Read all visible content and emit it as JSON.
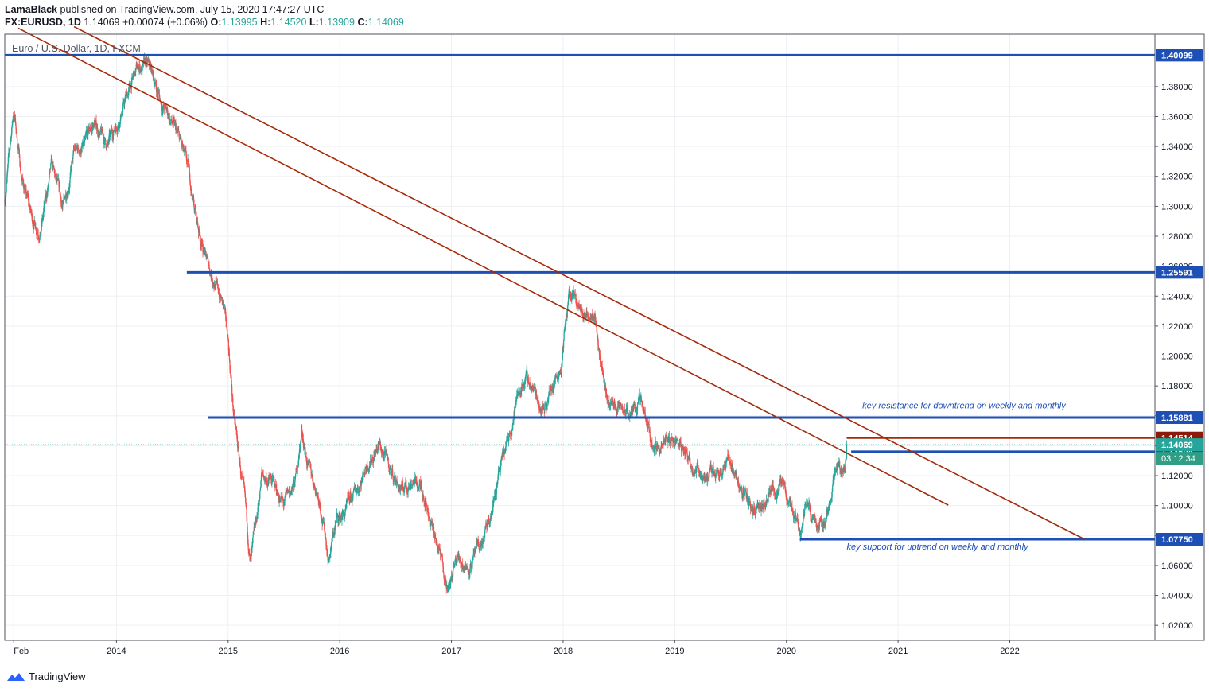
{
  "header": {
    "publisher": "LamaBlack",
    "published_text": "published on TradingView.com, July 15, 2020 17:47:27 UTC",
    "symbol": "FX:EURUSD, 1D",
    "last": "1.14069",
    "change": "+0.00074 (+0.06%)",
    "o_label": "O:",
    "o_value": "1.13995",
    "h_label": "H:",
    "h_value": "1.14520",
    "l_label": "L:",
    "l_value": "1.13909",
    "c_label": "C:",
    "c_value": "1.14069"
  },
  "footer": {
    "brand": "TradingView"
  },
  "colors": {
    "up": "#26a69a",
    "down": "#ef5350",
    "hline": "#1e4fb5",
    "trendline": "#a52a0a",
    "grid": "#edf0f3",
    "axis_text": "#131722"
  },
  "chart_data": {
    "type": "candlestick",
    "title": "Euro / U.S. Dollar, 1D, FXCM",
    "ylim": [
      1.01,
      1.415
    ],
    "y_ticks": [
      "1.02000",
      "1.04000",
      "1.06000",
      "1.08000",
      "1.10000",
      "1.12000",
      "1.14000",
      "1.16000",
      "1.18000",
      "1.20000",
      "1.22000",
      "1.24000",
      "1.26000",
      "1.28000",
      "1.30000",
      "1.32000",
      "1.34000",
      "1.36000",
      "1.38000"
    ],
    "x_ticks": [
      {
        "label": "Feb",
        "t": 2013.08
      },
      {
        "label": "2014",
        "t": 2014.0
      },
      {
        "label": "2015",
        "t": 2015.0
      },
      {
        "label": "2016",
        "t": 2016.0
      },
      {
        "label": "2017",
        "t": 2017.0
      },
      {
        "label": "2018",
        "t": 2018.0
      },
      {
        "label": "2019",
        "t": 2019.0
      },
      {
        "label": "2020",
        "t": 2020.0
      },
      {
        "label": "2021",
        "t": 2021.0
      },
      {
        "label": "2022",
        "t": 2022.0
      }
    ],
    "price_anchors": [
      [
        2013.0,
        1.305
      ],
      [
        2013.08,
        1.365
      ],
      [
        2013.15,
        1.32
      ],
      [
        2013.25,
        1.29
      ],
      [
        2013.32,
        1.285
      ],
      [
        2013.42,
        1.325
      ],
      [
        2013.52,
        1.298
      ],
      [
        2013.62,
        1.335
      ],
      [
        2013.72,
        1.34
      ],
      [
        2013.8,
        1.355
      ],
      [
        2013.92,
        1.34
      ],
      [
        2014.05,
        1.365
      ],
      [
        2014.15,
        1.385
      ],
      [
        2014.2,
        1.393
      ],
      [
        2014.3,
        1.392
      ],
      [
        2014.4,
        1.37
      ],
      [
        2014.5,
        1.355
      ],
      [
        2014.58,
        1.34
      ],
      [
        2014.65,
        1.32
      ],
      [
        2014.72,
        1.29
      ],
      [
        2014.8,
        1.265
      ],
      [
        2014.88,
        1.25
      ],
      [
        2014.95,
        1.235
      ],
      [
        2015.0,
        1.21
      ],
      [
        2015.05,
        1.16
      ],
      [
        2015.1,
        1.13
      ],
      [
        2015.15,
        1.1
      ],
      [
        2015.2,
        1.06
      ],
      [
        2015.25,
        1.085
      ],
      [
        2015.3,
        1.12
      ],
      [
        2015.4,
        1.115
      ],
      [
        2015.5,
        1.1
      ],
      [
        2015.6,
        1.115
      ],
      [
        2015.66,
        1.15
      ],
      [
        2015.72,
        1.125
      ],
      [
        2015.82,
        1.105
      ],
      [
        2015.9,
        1.065
      ],
      [
        2015.97,
        1.09
      ],
      [
        2016.05,
        1.095
      ],
      [
        2016.15,
        1.11
      ],
      [
        2016.25,
        1.13
      ],
      [
        2016.35,
        1.14
      ],
      [
        2016.45,
        1.125
      ],
      [
        2016.55,
        1.11
      ],
      [
        2016.65,
        1.118
      ],
      [
        2016.75,
        1.11
      ],
      [
        2016.85,
        1.08
      ],
      [
        2016.92,
        1.06
      ],
      [
        2016.98,
        1.045
      ],
      [
        2017.05,
        1.065
      ],
      [
        2017.15,
        1.06
      ],
      [
        2017.25,
        1.07
      ],
      [
        2017.35,
        1.09
      ],
      [
        2017.42,
        1.12
      ],
      [
        2017.5,
        1.14
      ],
      [
        2017.58,
        1.17
      ],
      [
        2017.65,
        1.185
      ],
      [
        2017.72,
        1.18
      ],
      [
        2017.82,
        1.165
      ],
      [
        2017.9,
        1.18
      ],
      [
        2017.98,
        1.195
      ],
      [
        2018.05,
        1.24
      ],
      [
        2018.12,
        1.235
      ],
      [
        2018.2,
        1.225
      ],
      [
        2018.28,
        1.235
      ],
      [
        2018.33,
        1.2
      ],
      [
        2018.4,
        1.17
      ],
      [
        2018.5,
        1.165
      ],
      [
        2018.6,
        1.16
      ],
      [
        2018.68,
        1.17
      ],
      [
        2018.72,
        1.16
      ],
      [
        2018.8,
        1.14
      ],
      [
        2018.9,
        1.14
      ],
      [
        2019.0,
        1.145
      ],
      [
        2019.1,
        1.135
      ],
      [
        2019.2,
        1.125
      ],
      [
        2019.3,
        1.12
      ],
      [
        2019.4,
        1.125
      ],
      [
        2019.5,
        1.13
      ],
      [
        2019.6,
        1.11
      ],
      [
        2019.7,
        1.1
      ],
      [
        2019.78,
        1.095
      ],
      [
        2019.88,
        1.11
      ],
      [
        2019.96,
        1.112
      ],
      [
        2020.05,
        1.1
      ],
      [
        2020.12,
        1.085
      ],
      [
        2020.2,
        1.11
      ],
      [
        2020.22,
        1.09
      ],
      [
        2020.28,
        1.085
      ],
      [
        2020.35,
        1.09
      ],
      [
        2020.42,
        1.115
      ],
      [
        2020.47,
        1.135
      ],
      [
        2020.5,
        1.125
      ],
      [
        2020.54,
        1.14
      ]
    ],
    "horizontal_levels": [
      {
        "price": 1.40099,
        "label": "1.40099",
        "x0": 2013.0,
        "x1": "axis",
        "kind": "support_resistance"
      },
      {
        "price": 1.25591,
        "label": "1.25591",
        "x0": 2014.63,
        "x1": "axis",
        "kind": "support_resistance"
      },
      {
        "price": 1.15881,
        "label": "1.15881",
        "x0": 2014.82,
        "x1": "axis",
        "kind": "support_resistance"
      },
      {
        "price": 1.13604,
        "label": "1.13604",
        "x0": 2020.58,
        "x1": "axis",
        "kind": "support_resistance"
      },
      {
        "price": 1.0775,
        "label": "1.07750",
        "x0": 2020.12,
        "x1": "axis",
        "kind": "support_resistance"
      },
      {
        "price": 1.14514,
        "label": "1.14514",
        "x0": 2020.54,
        "x1": "axis",
        "kind": "high_marker"
      }
    ],
    "trendlines": [
      {
        "t1": 2013.12,
        "p1": 1.419,
        "t2": 2021.45,
        "p2": 1.1003
      },
      {
        "t1": 2013.62,
        "p1": 1.42,
        "t2": 2022.67,
        "p2": 1.0775
      }
    ],
    "annotations": [
      {
        "text": "key resistance for downtrend on weekly and monthly",
        "t": 2020.68,
        "p": 1.165
      },
      {
        "text": "key support for uptrend on weekly and monthly",
        "t": 2020.54,
        "p": 1.0705
      }
    ],
    "last_price": {
      "label": "1.14069",
      "price": 1.14069
    },
    "countdown": "03:12:34",
    "grid": true,
    "legend": "top-left"
  }
}
